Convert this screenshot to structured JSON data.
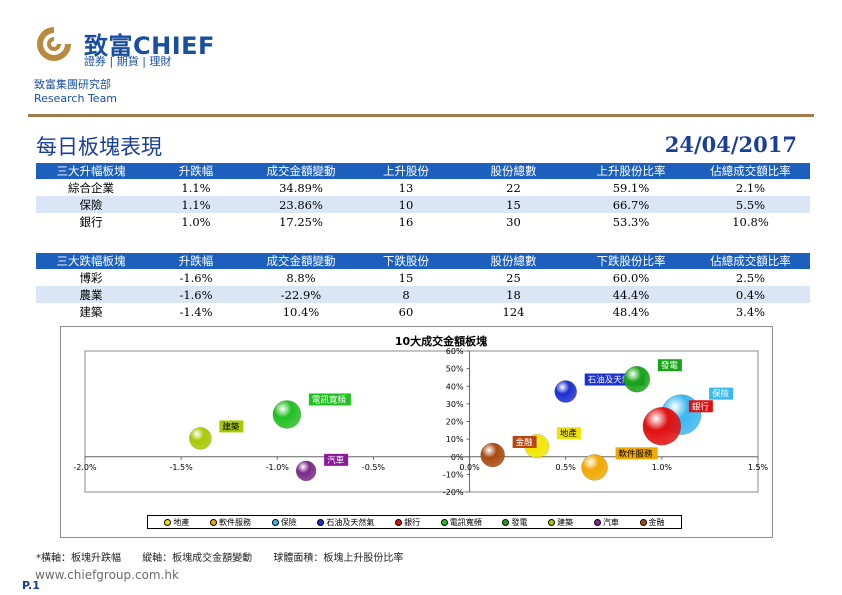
{
  "brand": {
    "name": "致富CHIEF",
    "tagline": "證券 | 期貨 | 理財"
  },
  "dept": {
    "zh": "致富集團研究部",
    "en": "Research Team"
  },
  "title": "每日板塊表現",
  "date": "24/04/2017",
  "table_up": {
    "headers": [
      "三大升幅板塊",
      "升跌幅",
      "成交金額變動",
      "上升股份",
      "股份總數",
      "上升股份比率",
      "佔總成交額比率"
    ],
    "rows": [
      [
        "綜合企業",
        "1.1%",
        "34.89%",
        "13",
        "22",
        "59.1%",
        "2.1%"
      ],
      [
        "保險",
        "1.1%",
        "23.86%",
        "10",
        "15",
        "66.7%",
        "5.5%"
      ],
      [
        "銀行",
        "1.0%",
        "17.25%",
        "16",
        "30",
        "53.3%",
        "10.8%"
      ]
    ]
  },
  "table_down": {
    "headers": [
      "三大跌幅板塊",
      "升跌幅",
      "成交金額變動",
      "下跌股份",
      "股份總數",
      "下跌股份比率",
      "佔總成交額比率"
    ],
    "rows": [
      [
        "博彩",
        "-1.6%",
        "8.8%",
        "15",
        "25",
        "60.0%",
        "2.5%"
      ],
      [
        "農業",
        "-1.6%",
        "-22.9%",
        "8",
        "18",
        "44.4%",
        "0.4%"
      ],
      [
        "建築",
        "-1.4%",
        "10.4%",
        "60",
        "124",
        "48.4%",
        "3.4%"
      ]
    ]
  },
  "chart_data": {
    "type": "scatter",
    "title": "10大成交金額板塊",
    "xlim": [
      -2.0,
      1.5
    ],
    "ylim": [
      -20,
      60
    ],
    "x_ticks": [
      "-2.0%",
      "-1.5%",
      "-1.0%",
      "-0.5%",
      "0.0%",
      "0.5%",
      "1.0%",
      "1.5%"
    ],
    "y_ticks": [
      "-20%",
      "-10%",
      "0%",
      "10%",
      "20%",
      "30%",
      "40%",
      "50%",
      "60%"
    ],
    "series": [
      {
        "name": "地產",
        "x": 0.35,
        "y": 6,
        "color": "#f2e600",
        "label_bg": "#f2e600"
      },
      {
        "name": "軟件服務",
        "x": 0.65,
        "y": -6,
        "color": "#f0a800",
        "label_bg": "#f0a800"
      },
      {
        "name": "保險",
        "x": 1.1,
        "y": 23.9,
        "color": "#3ab8f0",
        "label_bg": "#3ab8f0"
      },
      {
        "name": "石油及天然氣",
        "x": 0.5,
        "y": 37,
        "color": "#1a2fd0",
        "label_bg": "#1a2fd0"
      },
      {
        "name": "銀行",
        "x": 1.0,
        "y": 17.3,
        "color": "#e01010",
        "label_bg": "#e01010"
      },
      {
        "name": "電訊寬頻",
        "x": -0.95,
        "y": 24,
        "color": "#20c020",
        "label_bg": "#20c020"
      },
      {
        "name": "發電",
        "x": 0.87,
        "y": 44,
        "color": "#18a418",
        "label_bg": "#18a418"
      },
      {
        "name": "建築",
        "x": -1.4,
        "y": 10.4,
        "color": "#a8c800",
        "label_bg": "#a8c800"
      },
      {
        "name": "汽車",
        "x": -0.85,
        "y": -8,
        "color": "#7a2a8a",
        "label_bg": "#8a1a9a"
      },
      {
        "name": "金融",
        "x": 0.12,
        "y": 1,
        "color": "#a84a10",
        "label_bg": "#b8460c"
      }
    ]
  },
  "footnote": {
    "x_axis": "*橫軸：板塊升跌幅",
    "y_axis": "縱軸：板塊成交金額變動",
    "bubble": "球體面積：板塊上升股份比率"
  },
  "page": "P.1",
  "website": "www.chiefgroup.com.hk"
}
